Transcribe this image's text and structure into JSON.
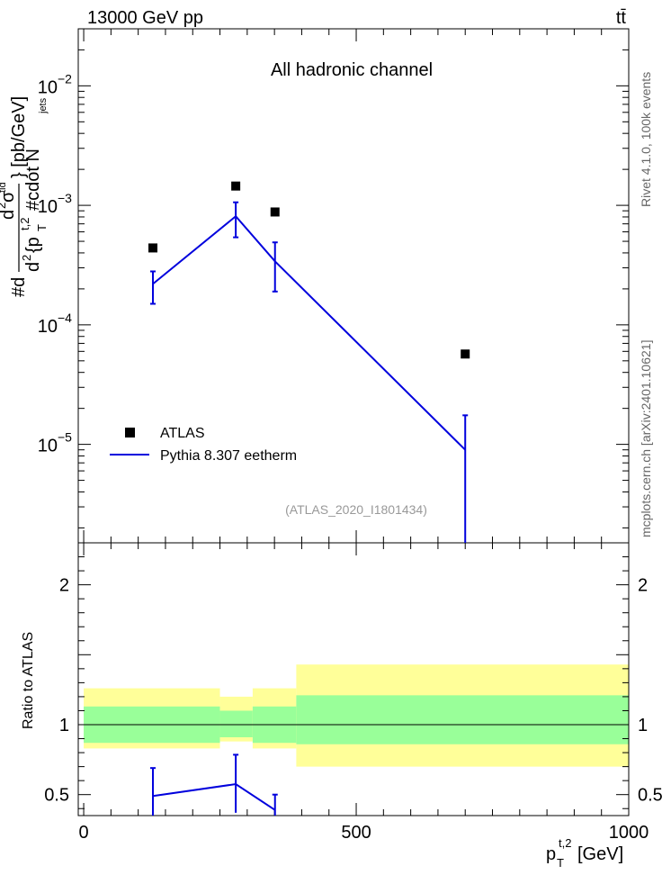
{
  "header": {
    "left": "13000 GeV pp",
    "right": "tt̄"
  },
  "chart_data": {
    "type": "line",
    "title": "All hadronic channel",
    "analysis_id": "(ATLAS_2020_I1801434)",
    "side_label_top": "Rivet 4.1.0,  100k events",
    "side_label_bottom": "mcplots.cern.ch [arXiv:2401.10621]",
    "xlabel": "p_T^{t,2} [GeV]",
    "xlabel_main": "p",
    "xlabel_sub": "T",
    "xlabel_sup": "t,2",
    "xlabel_unit": " [GeV]",
    "ylabel_main": "#d d²σ^{tīd} / d² {p_T^{t,2} #cdot N_jets} [pb/GeV]",
    "ylabel_parts": {
      "hash_d": "#d",
      "num": "d",
      "num_sup": "2",
      "num_sigma": "σ",
      "num_sigma_sup": "tid",
      "den_d": "d",
      "den_sup": "2",
      "den_brace": "{p",
      "den_sub_T": "T",
      "den_sup_t2": "t,2",
      "den_cdot": "#cdot N",
      "den_sub_jets": "jets",
      "unit": "} [pb/GeV]"
    },
    "ylabel_ratio": "Ratio to ATLAS",
    "xlim": [
      -10,
      1000
    ],
    "ylim": [
      1.5e-06,
      0.03
    ],
    "ylim_ratio": [
      0.35,
      2.3
    ],
    "xticks": [
      0,
      500,
      1000
    ],
    "xtick_labels": [
      "0",
      "500",
      "1000"
    ],
    "yticks_main": [
      {
        "value": 0.01,
        "base": "10",
        "exp": "−2"
      },
      {
        "value": 0.001,
        "base": "10",
        "exp": "−3"
      },
      {
        "value": 0.0001,
        "base": "10",
        "exp": "−4"
      },
      {
        "value": 1e-05,
        "base": "10",
        "exp": "−5"
      }
    ],
    "yticks_ratio": [
      {
        "value": 0.5,
        "label": "0.5"
      },
      {
        "value": 1,
        "label": "1"
      },
      {
        "value": 2,
        "label": "2"
      }
    ],
    "legend": {
      "position": "bottom-left",
      "entries": [
        {
          "name": "ATLAS",
          "style": "marker"
        },
        {
          "name": "Pythia 8.307 eetherm",
          "style": "line"
        }
      ]
    },
    "colors": {
      "data": "#000000",
      "mc": "#0000dd",
      "band_inner": "#99ff99",
      "band_outer": "#ffff99"
    },
    "series": [
      {
        "name": "ATLAS",
        "x": [
          127,
          279,
          351,
          700
        ],
        "y": [
          0.00044,
          0.00145,
          0.00088,
          5.7e-05
        ]
      },
      {
        "name": "Pythia 8.307 eetherm",
        "x": [
          127,
          279,
          351,
          700
        ],
        "y": [
          0.00022,
          0.00081,
          0.00034,
          9e-06
        ],
        "err_low": [
          0.00015,
          0.00054,
          0.00019,
          1.4e-06
        ],
        "err_high": [
          0.00028,
          0.00106,
          0.00049,
          1.75e-05
        ]
      }
    ],
    "ratio": {
      "bins": [
        0,
        250,
        310,
        390,
        1000
      ],
      "band_inner": [
        [
          0.87,
          1.13
        ],
        [
          0.91,
          1.1
        ],
        [
          0.87,
          1.13
        ],
        [
          0.86,
          1.21
        ]
      ],
      "band_outer": [
        [
          0.83,
          1.26
        ],
        [
          0.88,
          1.2
        ],
        [
          0.83,
          1.26
        ],
        [
          0.7,
          1.43
        ]
      ],
      "mc_x": [
        127,
        279,
        351
      ],
      "mc_y": [
        0.49,
        0.575,
        0.39
      ],
      "mc_err_low": [
        0.32,
        0.37,
        0.3
      ],
      "mc_err_high": [
        0.69,
        0.785,
        0.5
      ]
    }
  }
}
